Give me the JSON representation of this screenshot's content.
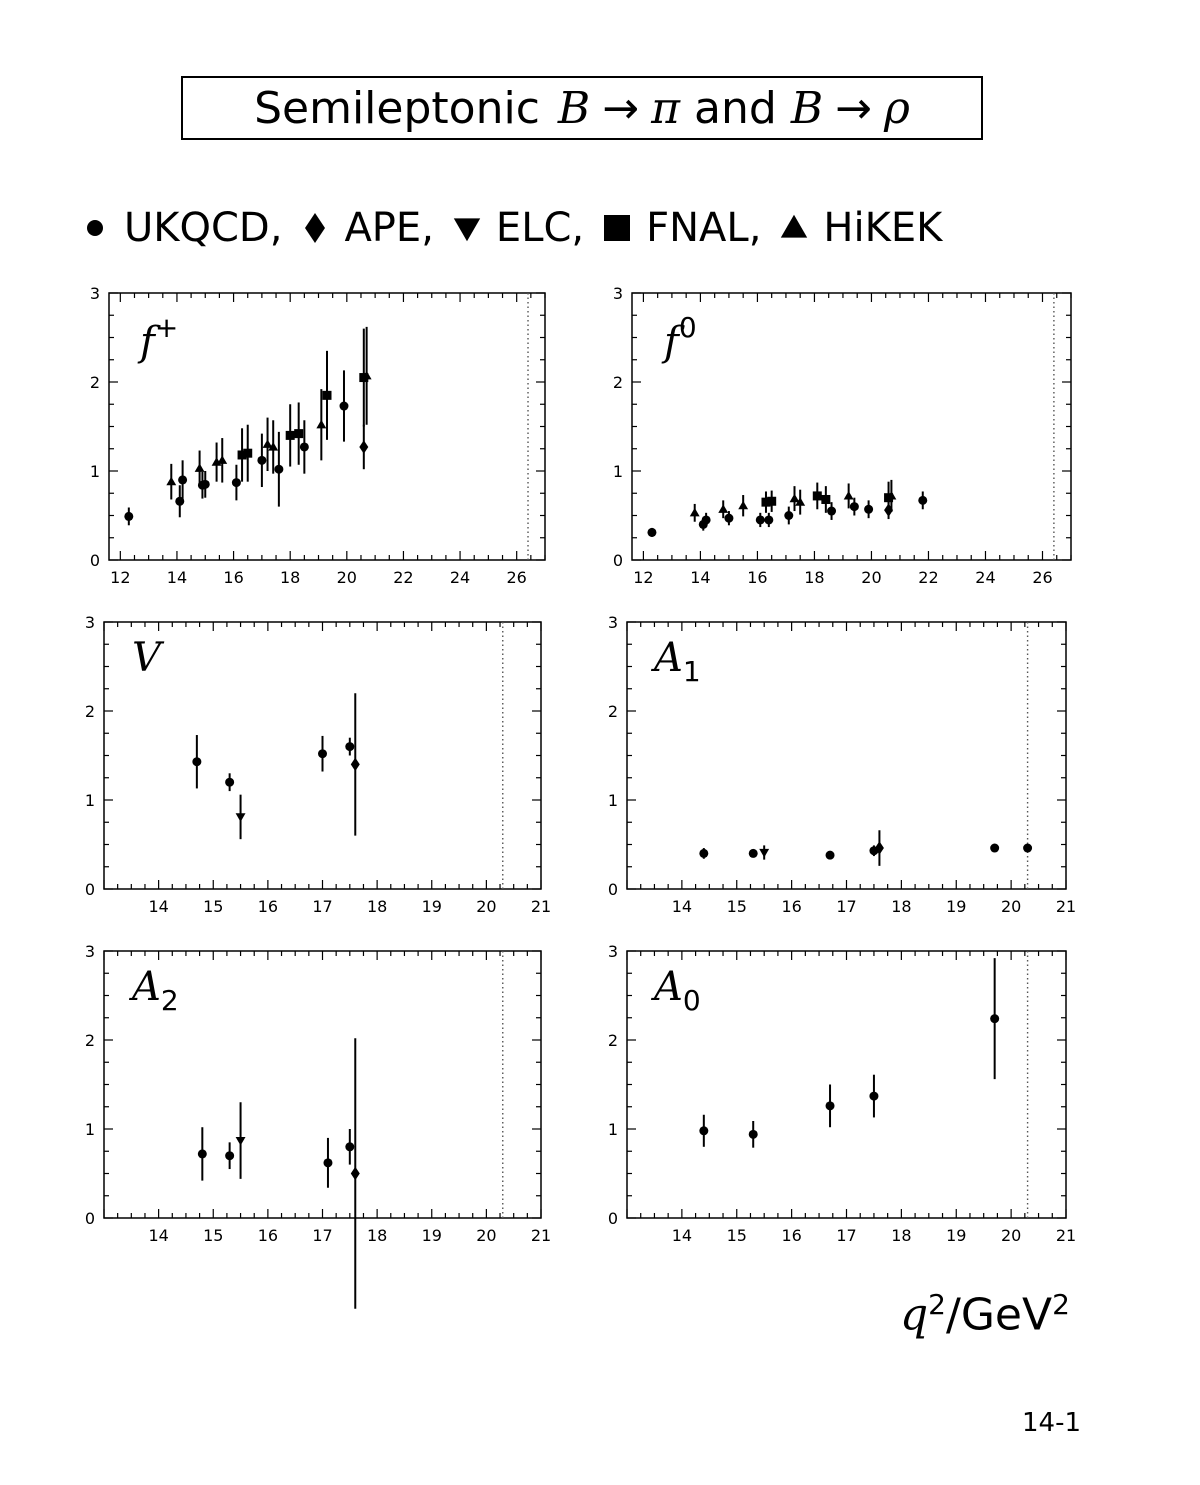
{
  "title": {
    "prefix": "Semileptonic",
    "b1": "B",
    "arrow": "→",
    "pi": "π",
    "and": "and",
    "b2": "B",
    "rho": "ρ"
  },
  "legend": [
    {
      "symbol": "circle",
      "label": "UKQCD,"
    },
    {
      "symbol": "diamond",
      "label": "APE,"
    },
    {
      "symbol": "triangle-down",
      "label": "ELC,"
    },
    {
      "symbol": "square",
      "label": "FNAL,"
    },
    {
      "symbol": "triangle-up",
      "label": "HiKEK"
    }
  ],
  "xlabel": {
    "q": "q",
    "sup": "2",
    "unit": "/GeV",
    "unit_sup": "2"
  },
  "page_number": "14-1",
  "colors": {
    "axis": "#000000",
    "marker": "#000000",
    "dotted_line": "#555555"
  },
  "chart_data": [
    {
      "type": "scatter",
      "label_main": "f",
      "label_sup": "+",
      "label_sub": "",
      "xlim": [
        11.6,
        27
      ],
      "ylim": [
        0,
        3
      ],
      "xticks": [
        12,
        14,
        16,
        18,
        20,
        22,
        24,
        26
      ],
      "yticks": [
        0,
        1,
        2,
        3
      ],
      "vline": 26.4,
      "points": [
        {
          "x": 12.3,
          "y": 0.49,
          "err": 0.1,
          "m": "circle"
        },
        {
          "x": 13.8,
          "y": 0.88,
          "err": 0.2,
          "m": "triangle-up"
        },
        {
          "x": 14.1,
          "y": 0.66,
          "err": 0.18,
          "m": "circle"
        },
        {
          "x": 14.2,
          "y": 0.9,
          "err": 0.22,
          "m": "circle"
        },
        {
          "x": 14.8,
          "y": 1.03,
          "err": 0.2,
          "m": "triangle-up"
        },
        {
          "x": 14.9,
          "y": 0.84,
          "err": 0.15,
          "m": "circle"
        },
        {
          "x": 15.0,
          "y": 0.85,
          "err": 0.15,
          "m": "circle"
        },
        {
          "x": 15.4,
          "y": 1.1,
          "err": 0.22,
          "m": "triangle-up"
        },
        {
          "x": 15.6,
          "y": 1.12,
          "err": 0.25,
          "m": "triangle-up"
        },
        {
          "x": 16.1,
          "y": 0.87,
          "err": 0.2,
          "m": "circle"
        },
        {
          "x": 16.3,
          "y": 1.18,
          "err": 0.3,
          "m": "square"
        },
        {
          "x": 16.5,
          "y": 1.2,
          "err": 0.32,
          "m": "square"
        },
        {
          "x": 17.0,
          "y": 1.12,
          "err": 0.3,
          "m": "circle"
        },
        {
          "x": 17.2,
          "y": 1.3,
          "err": 0.3,
          "m": "triangle-up"
        },
        {
          "x": 17.4,
          "y": 1.27,
          "err": 0.3,
          "m": "triangle-up"
        },
        {
          "x": 17.6,
          "y": 1.02,
          "err": 0.42,
          "m": "circle"
        },
        {
          "x": 18.0,
          "y": 1.4,
          "err": 0.35,
          "m": "square"
        },
        {
          "x": 18.3,
          "y": 1.42,
          "err": 0.35,
          "m": "square"
        },
        {
          "x": 18.5,
          "y": 1.27,
          "err": 0.3,
          "m": "circle"
        },
        {
          "x": 19.1,
          "y": 1.52,
          "err": 0.4,
          "m": "triangle-up"
        },
        {
          "x": 19.3,
          "y": 1.85,
          "err": 0.5,
          "m": "square"
        },
        {
          "x": 19.9,
          "y": 1.73,
          "err": 0.4,
          "m": "circle"
        },
        {
          "x": 20.6,
          "y": 2.05,
          "err": 0.55,
          "m": "square"
        },
        {
          "x": 20.7,
          "y": 2.07,
          "err": 0.55,
          "m": "triangle-up"
        },
        {
          "x": 20.6,
          "y": 1.27,
          "err": 0.25,
          "m": "diamond"
        }
      ]
    },
    {
      "type": "scatter",
      "label_main": "f",
      "label_sup": "0",
      "label_sub": "",
      "xlim": [
        11.6,
        27
      ],
      "ylim": [
        0,
        3
      ],
      "xticks": [
        12,
        14,
        16,
        18,
        20,
        22,
        24,
        26
      ],
      "yticks": [
        0,
        1,
        2,
        3
      ],
      "vline": 26.4,
      "points": [
        {
          "x": 12.3,
          "y": 0.31,
          "err": 0.05,
          "m": "circle"
        },
        {
          "x": 13.8,
          "y": 0.53,
          "err": 0.1,
          "m": "triangle-up"
        },
        {
          "x": 14.1,
          "y": 0.4,
          "err": 0.07,
          "m": "circle"
        },
        {
          "x": 14.2,
          "y": 0.45,
          "err": 0.08,
          "m": "circle"
        },
        {
          "x": 14.8,
          "y": 0.57,
          "err": 0.1,
          "m": "triangle-up"
        },
        {
          "x": 15.0,
          "y": 0.47,
          "err": 0.08,
          "m": "circle"
        },
        {
          "x": 15.5,
          "y": 0.61,
          "err": 0.12,
          "m": "triangle-up"
        },
        {
          "x": 16.1,
          "y": 0.45,
          "err": 0.08,
          "m": "circle"
        },
        {
          "x": 16.3,
          "y": 0.65,
          "err": 0.12,
          "m": "square"
        },
        {
          "x": 16.4,
          "y": 0.45,
          "err": 0.08,
          "m": "circle"
        },
        {
          "x": 16.5,
          "y": 0.66,
          "err": 0.12,
          "m": "square"
        },
        {
          "x": 17.1,
          "y": 0.5,
          "err": 0.1,
          "m": "circle"
        },
        {
          "x": 17.3,
          "y": 0.69,
          "err": 0.14,
          "m": "triangle-up"
        },
        {
          "x": 17.5,
          "y": 0.65,
          "err": 0.14,
          "m": "triangle-up"
        },
        {
          "x": 18.1,
          "y": 0.72,
          "err": 0.15,
          "m": "square"
        },
        {
          "x": 18.4,
          "y": 0.68,
          "err": 0.15,
          "m": "square"
        },
        {
          "x": 18.6,
          "y": 0.55,
          "err": 0.1,
          "m": "circle"
        },
        {
          "x": 19.2,
          "y": 0.72,
          "err": 0.14,
          "m": "triangle-up"
        },
        {
          "x": 19.4,
          "y": 0.6,
          "err": 0.1,
          "m": "circle"
        },
        {
          "x": 19.9,
          "y": 0.57,
          "err": 0.1,
          "m": "circle"
        },
        {
          "x": 20.6,
          "y": 0.7,
          "err": 0.18,
          "m": "square"
        },
        {
          "x": 20.7,
          "y": 0.72,
          "err": 0.18,
          "m": "triangle-up"
        },
        {
          "x": 20.6,
          "y": 0.56,
          "err": 0.1,
          "m": "diamond"
        },
        {
          "x": 21.8,
          "y": 0.67,
          "err": 0.1,
          "m": "circle"
        }
      ]
    },
    {
      "type": "scatter",
      "label_main": "V",
      "label_sup": "",
      "label_sub": "",
      "xlim": [
        13,
        21
      ],
      "ylim": [
        0,
        3
      ],
      "xticks": [
        14,
        15,
        16,
        17,
        18,
        19,
        20,
        21
      ],
      "yticks": [
        0,
        1,
        2,
        3
      ],
      "vline": 20.3,
      "points": [
        {
          "x": 14.7,
          "y": 1.43,
          "err": 0.3,
          "m": "circle"
        },
        {
          "x": 15.3,
          "y": 1.2,
          "err": 0.1,
          "m": "circle"
        },
        {
          "x": 15.5,
          "y": 0.81,
          "err": 0.25,
          "m": "triangle-down"
        },
        {
          "x": 17.0,
          "y": 1.52,
          "err": 0.2,
          "m": "circle"
        },
        {
          "x": 17.5,
          "y": 1.6,
          "err": 0.1,
          "m": "circle"
        },
        {
          "x": 17.6,
          "y": 1.4,
          "err": 0.8,
          "m": "diamond"
        }
      ]
    },
    {
      "type": "scatter",
      "label_main": "A",
      "label_sup": "",
      "label_sub": "1",
      "xlim": [
        13,
        21
      ],
      "ylim": [
        0,
        3
      ],
      "xticks": [
        14,
        15,
        16,
        17,
        18,
        19,
        20,
        21
      ],
      "yticks": [
        0,
        1,
        2,
        3
      ],
      "vline": 20.3,
      "points": [
        {
          "x": 14.4,
          "y": 0.4,
          "err": 0.06,
          "m": "circle"
        },
        {
          "x": 15.3,
          "y": 0.4,
          "err": 0.04,
          "m": "circle"
        },
        {
          "x": 15.5,
          "y": 0.41,
          "err": 0.08,
          "m": "triangle-down"
        },
        {
          "x": 16.7,
          "y": 0.38,
          "err": 0.04,
          "m": "circle"
        },
        {
          "x": 17.5,
          "y": 0.43,
          "err": 0.06,
          "m": "circle"
        },
        {
          "x": 17.6,
          "y": 0.46,
          "err": 0.2,
          "m": "diamond"
        },
        {
          "x": 19.7,
          "y": 0.46,
          "err": 0.04,
          "m": "circle"
        },
        {
          "x": 20.3,
          "y": 0.46,
          "err": 0.04,
          "m": "circle"
        }
      ]
    },
    {
      "type": "scatter",
      "label_main": "A",
      "label_sup": "",
      "label_sub": "2",
      "xlim": [
        13,
        21
      ],
      "ylim": [
        0,
        3
      ],
      "xticks": [
        14,
        15,
        16,
        17,
        18,
        19,
        20,
        21
      ],
      "yticks": [
        0,
        1,
        2,
        3
      ],
      "vline": 20.3,
      "points": [
        {
          "x": 14.8,
          "y": 0.72,
          "err": 0.3,
          "m": "circle"
        },
        {
          "x": 15.3,
          "y": 0.7,
          "err": 0.15,
          "m": "circle"
        },
        {
          "x": 15.5,
          "y": 0.87,
          "err": 0.43,
          "m": "triangle-down"
        },
        {
          "x": 17.1,
          "y": 0.62,
          "err": 0.28,
          "m": "circle"
        },
        {
          "x": 17.5,
          "y": 0.8,
          "err": 0.2,
          "m": "circle"
        },
        {
          "x": 17.6,
          "y": 0.5,
          "err": 1.52,
          "m": "diamond"
        }
      ]
    },
    {
      "type": "scatter",
      "label_main": "A",
      "label_sup": "",
      "label_sub": "0",
      "xlim": [
        13,
        21
      ],
      "ylim": [
        0,
        3
      ],
      "xticks": [
        14,
        15,
        16,
        17,
        18,
        19,
        20,
        21
      ],
      "yticks": [
        0,
        1,
        2,
        3
      ],
      "vline": 20.3,
      "points": [
        {
          "x": 14.4,
          "y": 0.98,
          "err": 0.18,
          "m": "circle"
        },
        {
          "x": 15.3,
          "y": 0.94,
          "err": 0.15,
          "m": "circle"
        },
        {
          "x": 16.7,
          "y": 1.26,
          "err": 0.24,
          "m": "circle"
        },
        {
          "x": 17.5,
          "y": 1.37,
          "err": 0.24,
          "m": "circle"
        },
        {
          "x": 19.7,
          "y": 2.24,
          "err": 0.68,
          "m": "circle"
        }
      ]
    }
  ]
}
